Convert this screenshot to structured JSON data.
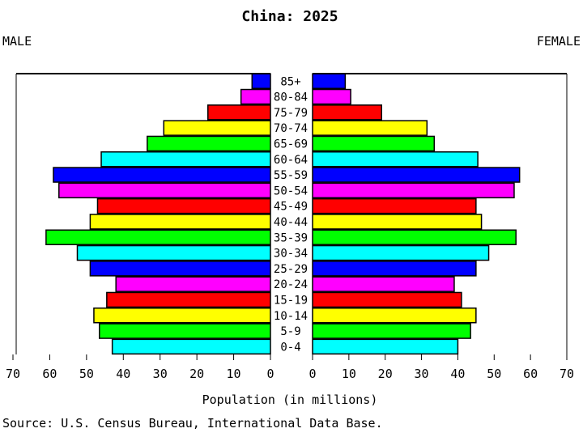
{
  "chart_data": {
    "type": "bar",
    "title": "China: 2025",
    "left_label": "MALE",
    "right_label": "FEMALE",
    "xlabel": "Population (in millions)",
    "source": "Source: U.S. Census Bureau, International Data Base.",
    "xlim": [
      0,
      70
    ],
    "ticks": [
      0,
      10,
      20,
      30,
      40,
      50,
      60,
      70
    ],
    "categories": [
      "0-4",
      "5-9",
      "10-14",
      "15-19",
      "20-24",
      "25-29",
      "30-34",
      "35-39",
      "40-44",
      "45-49",
      "50-54",
      "55-59",
      "60-64",
      "65-69",
      "70-74",
      "75-79",
      "80-84",
      "85+"
    ],
    "series": [
      {
        "name": "MALE",
        "values": [
          43,
          46.5,
          48,
          44.5,
          42,
          49,
          52.5,
          61,
          49,
          47,
          57.5,
          59,
          46,
          33.5,
          29,
          17,
          8,
          5
        ]
      },
      {
        "name": "FEMALE",
        "values": [
          40,
          43.5,
          45,
          41,
          39,
          45,
          48.5,
          56,
          46.5,
          45,
          55.5,
          57,
          45.5,
          33.5,
          31.5,
          19,
          10.5,
          9
        ]
      }
    ],
    "bar_colors": [
      "#00ffff",
      "#00ff00",
      "#ffff00",
      "#ff0000",
      "#ff00ff",
      "#0000ff",
      "#00ffff",
      "#00ff00",
      "#ffff00",
      "#ff0000",
      "#ff00ff",
      "#0000ff",
      "#00ffff",
      "#00ff00",
      "#ffff00",
      "#ff0000",
      "#ff00ff",
      "#0000ff"
    ]
  }
}
